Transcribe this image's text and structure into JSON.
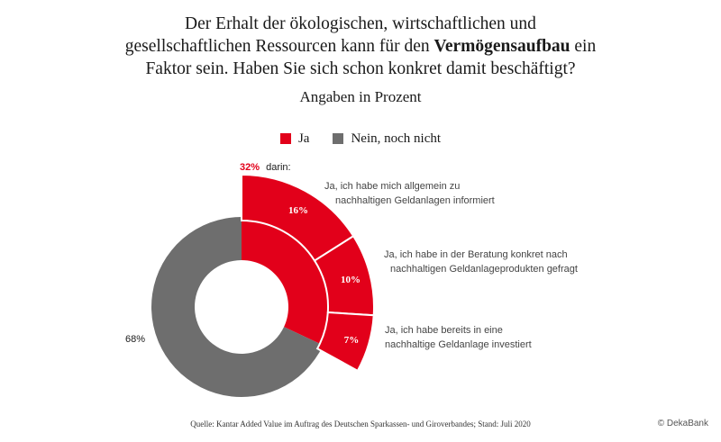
{
  "title": {
    "line1": "Der Erhalt der ökologischen, wirtschaftlichen und",
    "line2_pre": "gesellschaftlichen Ressourcen kann für den ",
    "line2_bold": "Vermögensaufbau",
    "line2_post": " ein",
    "line3": "Faktor sein. Haben Sie sich schon konkret damit beschäftigt?"
  },
  "subtitle": "Angaben in Prozent",
  "legend": [
    {
      "label": "Ja",
      "color": "#e2001a"
    },
    {
      "label": "Nein, noch nicht",
      "color": "#6e6e6e"
    }
  ],
  "chart_data": {
    "type": "pie",
    "variant": "donut with exploded sub-breakdown",
    "slices": [
      {
        "name": "Ja",
        "value": 32,
        "label": "32%",
        "color": "#e2001a"
      },
      {
        "name": "Nein, noch nicht",
        "value": 68,
        "label": "68%",
        "color": "#6e6e6e"
      }
    ],
    "breakdown_label": {
      "value": "32%",
      "text": "darin:"
    },
    "breakdown": [
      {
        "value": 16,
        "label": "16%",
        "text_line1": "Ja, ich habe mich allgemein zu",
        "text_line2": "nachhaltigen Geldanlagen informiert"
      },
      {
        "value": 10,
        "label": "10%",
        "text_line1": "Ja, ich habe in der Beratung konkret nach",
        "text_line2": "nachhaltigen Geldanlageprodukten gefragt"
      },
      {
        "value": 7,
        "label": "7%",
        "text_line1": "Ja, ich habe bereits in eine",
        "text_line2": "nachhaltige Geldanlage investiert"
      }
    ]
  },
  "footer": {
    "source": "Quelle: Kantar Added Value im Auftrag des Deutschen Sparkassen- und Giroverbandes; Stand: Juli 2020",
    "copyright": "© DekaBank"
  }
}
